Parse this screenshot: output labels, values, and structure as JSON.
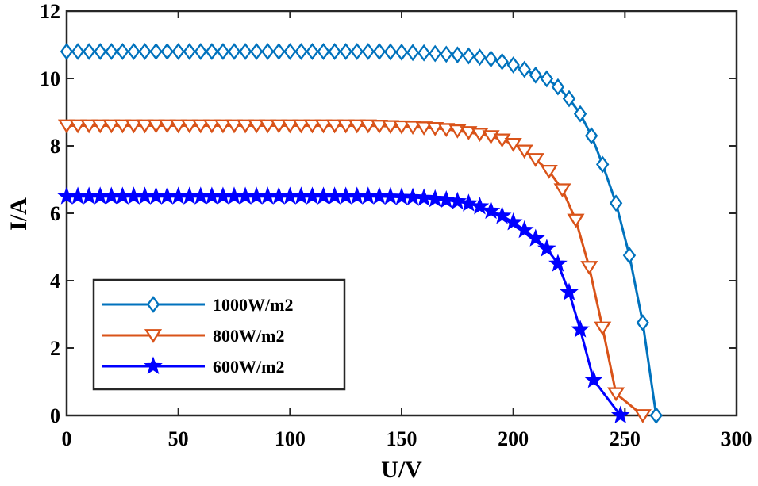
{
  "chart_data": {
    "type": "line",
    "xlabel": "U/V",
    "ylabel": "I/A",
    "xlim": [
      0,
      300
    ],
    "ylim": [
      0,
      12
    ],
    "xticks": [
      0,
      50,
      100,
      150,
      200,
      250,
      300
    ],
    "yticks": [
      0,
      2,
      4,
      6,
      8,
      10,
      12
    ],
    "grid": false,
    "legend_position": "bottom-left",
    "series": [
      {
        "name": "1000W/m2",
        "color": "#0072BD",
        "marker": "diamond",
        "points": [
          [
            0,
            10.8
          ],
          [
            5,
            10.8
          ],
          [
            10,
            10.8
          ],
          [
            15,
            10.8
          ],
          [
            20,
            10.8
          ],
          [
            25,
            10.8
          ],
          [
            30,
            10.8
          ],
          [
            35,
            10.8
          ],
          [
            40,
            10.8
          ],
          [
            45,
            10.8
          ],
          [
            50,
            10.8
          ],
          [
            55,
            10.8
          ],
          [
            60,
            10.8
          ],
          [
            65,
            10.8
          ],
          [
            70,
            10.8
          ],
          [
            75,
            10.8
          ],
          [
            80,
            10.8
          ],
          [
            85,
            10.8
          ],
          [
            90,
            10.8
          ],
          [
            95,
            10.8
          ],
          [
            100,
            10.8
          ],
          [
            105,
            10.8
          ],
          [
            110,
            10.8
          ],
          [
            115,
            10.8
          ],
          [
            120,
            10.8
          ],
          [
            125,
            10.8
          ],
          [
            130,
            10.8
          ],
          [
            135,
            10.8
          ],
          [
            140,
            10.8
          ],
          [
            145,
            10.79
          ],
          [
            150,
            10.78
          ],
          [
            155,
            10.77
          ],
          [
            160,
            10.76
          ],
          [
            165,
            10.74
          ],
          [
            170,
            10.72
          ],
          [
            175,
            10.7
          ],
          [
            180,
            10.67
          ],
          [
            185,
            10.63
          ],
          [
            190,
            10.58
          ],
          [
            195,
            10.5
          ],
          [
            200,
            10.4
          ],
          [
            205,
            10.27
          ],
          [
            210,
            10.1
          ],
          [
            215,
            9.99
          ],
          [
            220,
            9.75
          ],
          [
            225,
            9.4
          ],
          [
            230,
            8.95
          ],
          [
            235,
            8.3
          ],
          [
            240,
            7.45
          ],
          [
            246,
            6.3
          ],
          [
            252,
            4.75
          ],
          [
            258,
            2.75
          ],
          [
            264,
            0.0
          ]
        ]
      },
      {
        "name": "800W/m2",
        "color": "#D95319",
        "marker": "triangle-down",
        "points": [
          [
            0,
            8.6
          ],
          [
            5,
            8.6
          ],
          [
            10,
            8.6
          ],
          [
            15,
            8.6
          ],
          [
            20,
            8.6
          ],
          [
            25,
            8.6
          ],
          [
            30,
            8.6
          ],
          [
            35,
            8.6
          ],
          [
            40,
            8.6
          ],
          [
            45,
            8.6
          ],
          [
            50,
            8.6
          ],
          [
            55,
            8.6
          ],
          [
            60,
            8.6
          ],
          [
            65,
            8.6
          ],
          [
            70,
            8.6
          ],
          [
            75,
            8.6
          ],
          [
            80,
            8.6
          ],
          [
            85,
            8.6
          ],
          [
            90,
            8.6
          ],
          [
            95,
            8.6
          ],
          [
            100,
            8.6
          ],
          [
            105,
            8.6
          ],
          [
            110,
            8.6
          ],
          [
            115,
            8.6
          ],
          [
            120,
            8.6
          ],
          [
            125,
            8.6
          ],
          [
            130,
            8.6
          ],
          [
            135,
            8.6
          ],
          [
            140,
            8.59
          ],
          [
            145,
            8.58
          ],
          [
            150,
            8.57
          ],
          [
            155,
            8.56
          ],
          [
            160,
            8.54
          ],
          [
            165,
            8.52
          ],
          [
            170,
            8.49
          ],
          [
            175,
            8.45
          ],
          [
            180,
            8.4
          ],
          [
            185,
            8.35
          ],
          [
            190,
            8.28
          ],
          [
            195,
            8.18
          ],
          [
            200,
            8.05
          ],
          [
            205,
            7.85
          ],
          [
            210,
            7.6
          ],
          [
            216,
            7.25
          ],
          [
            222,
            6.7
          ],
          [
            228,
            5.8
          ],
          [
            234,
            4.4
          ],
          [
            240,
            2.6
          ],
          [
            246,
            0.65
          ],
          [
            258,
            0.0
          ]
        ]
      },
      {
        "name": "600W/m2",
        "color": "#0000FF",
        "marker": "star",
        "points": [
          [
            0,
            6.5
          ],
          [
            5,
            6.5
          ],
          [
            10,
            6.5
          ],
          [
            15,
            6.5
          ],
          [
            20,
            6.5
          ],
          [
            25,
            6.5
          ],
          [
            30,
            6.5
          ],
          [
            35,
            6.5
          ],
          [
            40,
            6.5
          ],
          [
            45,
            6.5
          ],
          [
            50,
            6.5
          ],
          [
            55,
            6.5
          ],
          [
            60,
            6.5
          ],
          [
            65,
            6.5
          ],
          [
            70,
            6.5
          ],
          [
            75,
            6.5
          ],
          [
            80,
            6.5
          ],
          [
            85,
            6.5
          ],
          [
            90,
            6.5
          ],
          [
            95,
            6.5
          ],
          [
            100,
            6.5
          ],
          [
            105,
            6.5
          ],
          [
            110,
            6.5
          ],
          [
            115,
            6.5
          ],
          [
            120,
            6.5
          ],
          [
            125,
            6.5
          ],
          [
            130,
            6.5
          ],
          [
            135,
            6.5
          ],
          [
            140,
            6.5
          ],
          [
            145,
            6.49
          ],
          [
            150,
            6.48
          ],
          [
            155,
            6.47
          ],
          [
            160,
            6.45
          ],
          [
            165,
            6.42
          ],
          [
            170,
            6.39
          ],
          [
            175,
            6.35
          ],
          [
            180,
            6.29
          ],
          [
            185,
            6.2
          ],
          [
            190,
            6.07
          ],
          [
            195,
            5.92
          ],
          [
            200,
            5.73
          ],
          [
            205,
            5.5
          ],
          [
            210,
            5.25
          ],
          [
            215,
            4.95
          ],
          [
            220,
            4.5
          ],
          [
            225,
            3.65
          ],
          [
            230,
            2.55
          ],
          [
            236,
            1.05
          ],
          [
            248,
            0.0
          ]
        ]
      }
    ]
  }
}
